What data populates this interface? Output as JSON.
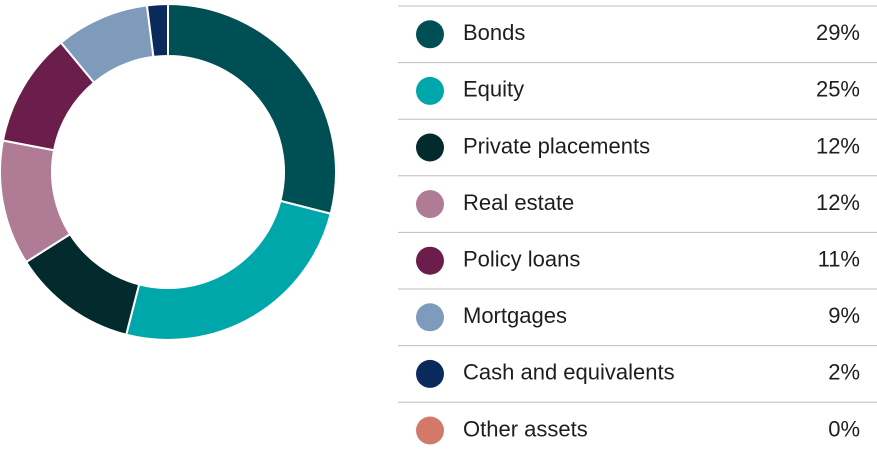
{
  "chart_data": {
    "type": "donut",
    "categories": [
      "Bonds",
      "Equity",
      "Private placements",
      "Real estate",
      "Policy loans",
      "Mortgages",
      "Cash and equivalents",
      "Other assets"
    ],
    "values": [
      29,
      25,
      12,
      12,
      11,
      9,
      2,
      0
    ],
    "value_labels": [
      "29%",
      "25%",
      "12%",
      "12%",
      "11%",
      "9%",
      "2%",
      "0%"
    ],
    "colors": [
      "#004f55",
      "#00a7aa",
      "#032a2c",
      "#b07c95",
      "#6b1d4b",
      "#7f9bbb",
      "#0b2a5c",
      "#d3796a"
    ]
  }
}
